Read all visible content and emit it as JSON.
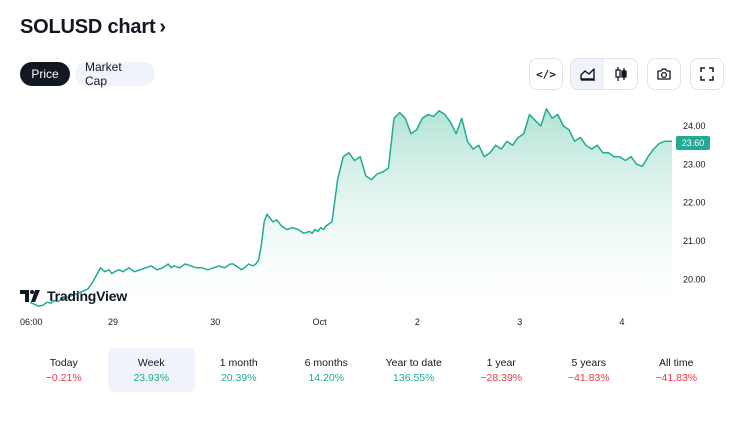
{
  "header": {
    "title": "SOLUSD chart",
    "chevron": "›"
  },
  "tabs": [
    {
      "label": "Price",
      "active": true
    },
    {
      "label": "Market Cap",
      "active": false
    }
  ],
  "toolbar": {
    "icons": [
      "embed-code-icon",
      "area-chart-icon",
      "candles-icon",
      "camera-icon",
      "fullscreen-icon"
    ],
    "embed_glyph": "</>"
  },
  "branding": {
    "logo_text": "TradingView"
  },
  "chart_data": {
    "type": "area",
    "symbol": "SOLUSD",
    "last_price": "23.60",
    "y_tick_labels": [
      "24.00",
      "23.00",
      "22.00",
      "21.00",
      "20.00"
    ],
    "x_tick_labels": [
      "06:00",
      "29",
      "30",
      "Oct",
      "2",
      "3",
      "4"
    ],
    "ylim": [
      19.2,
      24.6
    ],
    "grid": false,
    "colors": {
      "line": "#22ab94",
      "fill_top": "#a8e0d0",
      "fill_bottom": "#ffffff",
      "price_tag": "#22ab94"
    },
    "x": [
      0,
      0.03,
      0.06,
      0.09,
      0.12,
      0.15,
      0.17,
      0.2,
      0.22,
      0.25,
      0.28,
      0.31,
      0.35,
      0.38,
      0.41,
      0.44,
      0.47,
      0.5,
      0.53,
      0.56,
      0.58,
      0.6,
      0.63,
      0.66,
      0.7,
      0.74,
      0.78,
      0.82,
      0.86,
      0.9,
      0.94,
      0.98,
      1.0,
      1.02,
      1.06,
      1.1,
      1.14,
      1.18,
      1.22,
      1.26,
      1.3,
      1.34,
      1.38,
      1.42,
      1.44,
      1.46,
      1.48,
      1.5,
      1.52,
      1.55,
      1.58,
      1.6,
      1.62,
      1.64,
      1.66,
      1.68,
      1.7,
      1.72,
      1.75,
      1.78,
      1.82,
      1.86,
      1.9,
      1.94,
      1.98,
      2.0,
      2.02,
      2.04,
      2.06,
      2.08,
      2.1,
      2.14,
      2.18,
      2.22,
      2.26,
      2.3,
      2.34,
      2.38,
      2.42,
      2.46,
      2.5,
      2.54,
      2.58,
      2.62,
      2.66,
      2.7,
      2.74,
      2.78,
      2.82,
      2.86,
      2.9,
      2.94,
      2.98,
      3.02,
      3.06,
      3.1,
      3.14,
      3.18,
      3.22,
      3.26,
      3.3,
      3.34,
      3.38,
      3.42,
      3.46,
      3.5,
      3.54,
      3.58,
      3.62,
      3.66,
      3.7,
      3.74,
      3.78,
      3.82,
      3.86,
      3.9,
      3.94,
      3.98,
      4.02,
      4.06,
      4.1,
      4.14,
      4.18,
      4.22,
      4.26,
      4.3,
      4.34,
      4.38,
      4.42,
      4.46,
      4.5,
      4.55
    ],
    "y": [
      19.4,
      19.35,
      19.3,
      19.32,
      19.4,
      19.38,
      19.45,
      19.42,
      19.48,
      19.5,
      19.55,
      19.6,
      19.65,
      19.7,
      19.75,
      19.9,
      20.1,
      20.3,
      20.2,
      20.25,
      20.15,
      20.2,
      20.25,
      20.2,
      20.3,
      20.2,
      20.25,
      20.3,
      20.35,
      20.25,
      20.3,
      20.4,
      20.3,
      20.35,
      20.3,
      20.4,
      20.35,
      20.3,
      20.3,
      20.25,
      20.3,
      20.35,
      20.3,
      20.4,
      20.4,
      20.35,
      20.3,
      20.25,
      20.3,
      20.4,
      20.35,
      20.4,
      20.5,
      20.9,
      21.5,
      21.7,
      21.6,
      21.5,
      21.55,
      21.4,
      21.3,
      21.35,
      21.3,
      21.2,
      21.25,
      21.2,
      21.3,
      21.25,
      21.35,
      21.3,
      21.4,
      21.5,
      22.6,
      23.2,
      23.3,
      23.1,
      23.2,
      22.7,
      22.6,
      22.75,
      22.8,
      22.9,
      24.2,
      24.35,
      24.2,
      23.8,
      23.9,
      24.2,
      24.3,
      24.25,
      24.4,
      24.3,
      24.1,
      23.8,
      24.2,
      23.6,
      23.4,
      23.5,
      23.2,
      23.3,
      23.5,
      23.4,
      23.6,
      23.5,
      23.7,
      23.8,
      24.3,
      24.15,
      24.0,
      24.45,
      24.2,
      24.3,
      24.0,
      23.9,
      23.6,
      23.7,
      23.5,
      23.4,
      23.5,
      23.3,
      23.3,
      23.2,
      23.2,
      23.1,
      23.2,
      23.0,
      22.95,
      23.2,
      23.4,
      23.55,
      23.6,
      23.6
    ]
  },
  "performance": [
    {
      "label": "Today",
      "value": "−0.21%",
      "trend": "neg",
      "selected": false
    },
    {
      "label": "Week",
      "value": "23.93%",
      "trend": "pos",
      "selected": true
    },
    {
      "label": "1 month",
      "value": "20.39%",
      "trend": "pos",
      "selected": false
    },
    {
      "label": "6 months",
      "value": "14.20%",
      "trend": "pos",
      "selected": false
    },
    {
      "label": "Year to date",
      "value": "136.55%",
      "trend": "pos",
      "selected": false
    },
    {
      "label": "1 year",
      "value": "−28.39%",
      "trend": "neg",
      "selected": false
    },
    {
      "label": "5 years",
      "value": "−41.83%",
      "trend": "neg",
      "selected": false
    },
    {
      "label": "All time",
      "value": "−41.83%",
      "trend": "neg",
      "selected": false
    }
  ]
}
